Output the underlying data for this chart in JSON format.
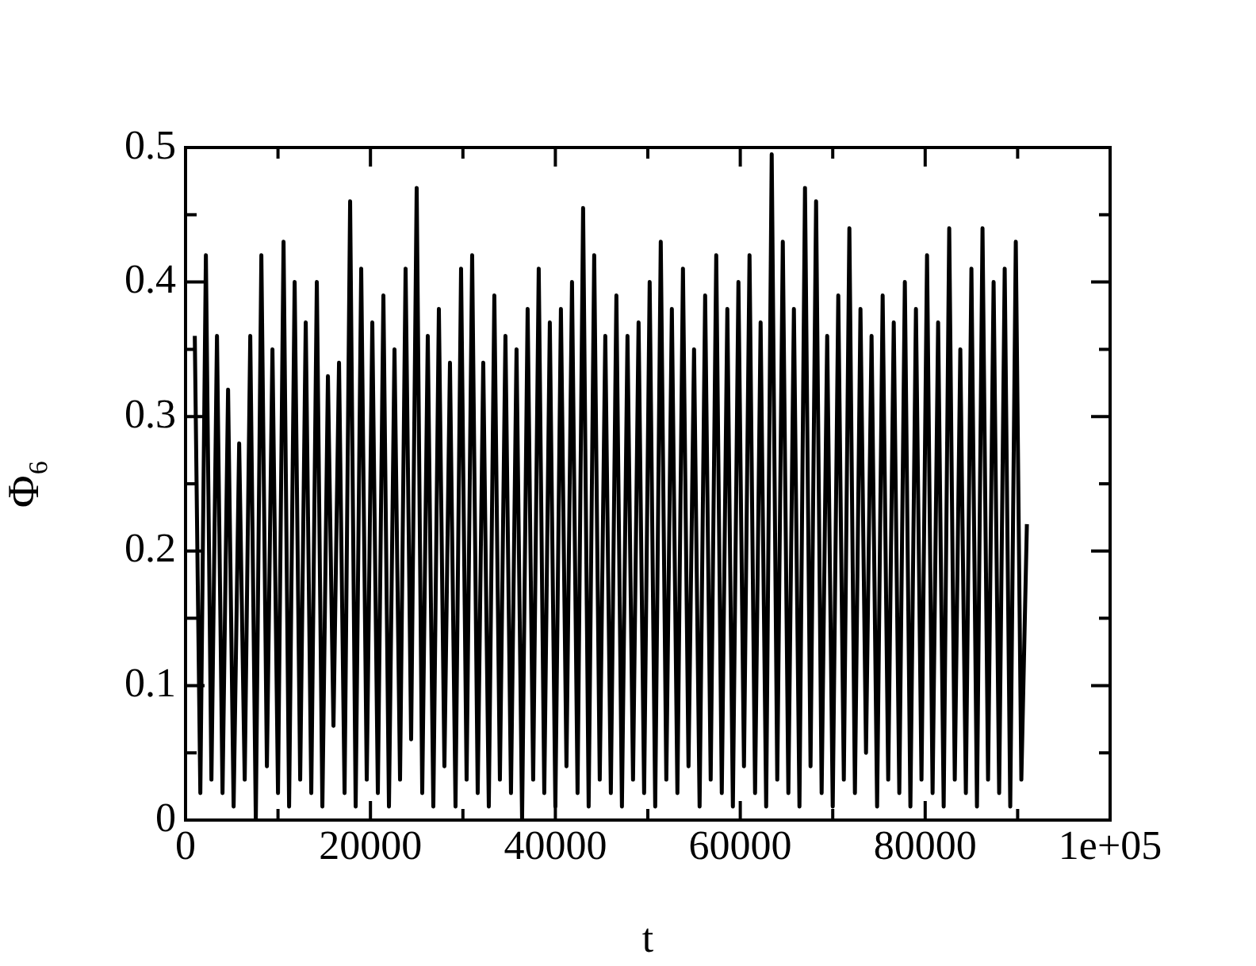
{
  "chart_data": {
    "type": "line",
    "xlabel": "t",
    "ylabel": "Φ₆",
    "color": "#000000",
    "marker": "none",
    "line_style": "solid",
    "grid": false,
    "legend": false,
    "xlim": [
      0,
      100000
    ],
    "ylim": [
      0,
      0.5
    ],
    "xticks": [
      0,
      {
        "value": 10000,
        "label": null
      },
      20000,
      {
        "value": 30000,
        "label": null
      },
      40000,
      {
        "value": 50000,
        "label": null
      },
      60000,
      {
        "value": 70000,
        "label": null
      },
      80000,
      {
        "value": 90000,
        "label": null
      },
      {
        "value": 100000,
        "label": "1e+05"
      }
    ],
    "yticks": [
      0,
      {
        "value": 0.05,
        "label": null
      },
      0.1,
      {
        "value": 0.15,
        "label": null
      },
      0.2,
      {
        "value": 0.25,
        "label": null
      },
      0.3,
      {
        "value": 0.35,
        "label": null
      },
      0.4,
      {
        "value": 0.45,
        "label": null
      },
      0.5
    ],
    "x": [
      1000,
      1600,
      2200,
      2800,
      3400,
      4000,
      4600,
      5200,
      5800,
      6400,
      7000,
      7600,
      8200,
      8800,
      9400,
      10000,
      10600,
      11200,
      11800,
      12400,
      13000,
      13600,
      14200,
      14800,
      15400,
      16000,
      16600,
      17200,
      17800,
      18400,
      19000,
      19600,
      20200,
      20800,
      21400,
      22000,
      22600,
      23200,
      23800,
      24400,
      25000,
      25600,
      26200,
      26800,
      27400,
      28000,
      28600,
      29200,
      29800,
      30400,
      31000,
      31600,
      32200,
      32800,
      33400,
      34000,
      34600,
      35200,
      35800,
      36400,
      37000,
      37600,
      38200,
      38800,
      39400,
      40000,
      40600,
      41200,
      41800,
      42400,
      43000,
      43600,
      44200,
      44800,
      45400,
      46000,
      46600,
      47200,
      47800,
      48400,
      49000,
      49600,
      50200,
      50800,
      51400,
      52000,
      52600,
      53200,
      53800,
      54400,
      55000,
      55600,
      56200,
      56800,
      57400,
      58000,
      58600,
      59200,
      59800,
      60400,
      61000,
      61600,
      62200,
      62800,
      63400,
      64000,
      64600,
      65200,
      65800,
      66400,
      67000,
      67600,
      68200,
      68800,
      69400,
      70000,
      70600,
      71200,
      71800,
      72400,
      73000,
      73600,
      74200,
      74800,
      75400,
      76000,
      76600,
      77200,
      77800,
      78400,
      79000,
      79600,
      80200,
      80800,
      81400,
      82000,
      82600,
      83200,
      83800,
      84400,
      85000,
      85600,
      86200,
      86800,
      87400,
      88000,
      88600,
      89200,
      89800,
      90400,
      91000
    ],
    "values": [
      0.36,
      0.02,
      0.42,
      0.03,
      0.36,
      0.02,
      0.32,
      0.01,
      0.28,
      0.03,
      0.36,
      0.0,
      0.42,
      0.04,
      0.35,
      0.02,
      0.43,
      0.01,
      0.4,
      0.03,
      0.37,
      0.02,
      0.4,
      0.01,
      0.33,
      0.07,
      0.34,
      0.02,
      0.46,
      0.01,
      0.41,
      0.03,
      0.37,
      0.02,
      0.39,
      0.01,
      0.35,
      0.03,
      0.41,
      0.06,
      0.47,
      0.02,
      0.36,
      0.01,
      0.38,
      0.04,
      0.34,
      0.01,
      0.41,
      0.03,
      0.42,
      0.02,
      0.34,
      0.01,
      0.39,
      0.03,
      0.36,
      0.02,
      0.35,
      0.0,
      0.38,
      0.03,
      0.41,
      0.02,
      0.37,
      0.01,
      0.38,
      0.04,
      0.4,
      0.02,
      0.455,
      0.01,
      0.42,
      0.03,
      0.36,
      0.02,
      0.39,
      0.01,
      0.36,
      0.03,
      0.37,
      0.02,
      0.4,
      0.01,
      0.43,
      0.03,
      0.38,
      0.02,
      0.41,
      0.04,
      0.35,
      0.01,
      0.39,
      0.03,
      0.42,
      0.02,
      0.38,
      0.01,
      0.4,
      0.04,
      0.42,
      0.02,
      0.37,
      0.01,
      0.495,
      0.03,
      0.43,
      0.02,
      0.38,
      0.01,
      0.47,
      0.04,
      0.46,
      0.02,
      0.36,
      0.01,
      0.39,
      0.03,
      0.44,
      0.02,
      0.38,
      0.05,
      0.36,
      0.01,
      0.39,
      0.03,
      0.37,
      0.02,
      0.4,
      0.01,
      0.38,
      0.03,
      0.42,
      0.02,
      0.37,
      0.01,
      0.44,
      0.03,
      0.35,
      0.02,
      0.41,
      0.01,
      0.44,
      0.03,
      0.4,
      0.02,
      0.41,
      0.01,
      0.43,
      0.03,
      0.22
    ]
  }
}
